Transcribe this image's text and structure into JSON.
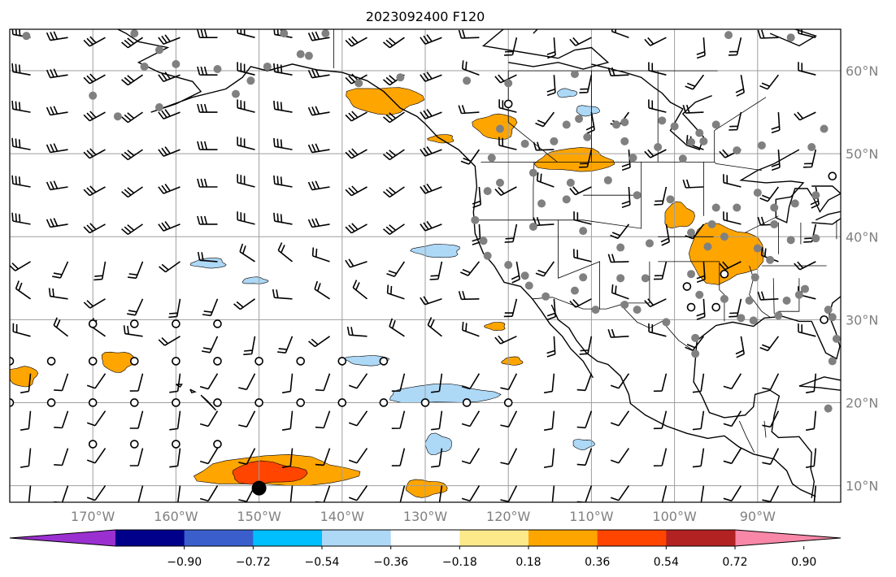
{
  "title": "2023092400 F120",
  "map": {
    "lon_range": [
      -180,
      -80
    ],
    "lat_range": [
      8,
      65
    ],
    "lon_ticks": [
      {
        "value": -170,
        "label": "170°W"
      },
      {
        "value": -160,
        "label": "160°W"
      },
      {
        "value": -150,
        "label": "150°W"
      },
      {
        "value": -140,
        "label": "140°W"
      },
      {
        "value": -130,
        "label": "130°W"
      },
      {
        "value": -120,
        "label": "120°W"
      },
      {
        "value": -110,
        "label": "110°W"
      },
      {
        "value": -100,
        "label": "100°W"
      },
      {
        "value": -90,
        "label": "90°W"
      }
    ],
    "lat_ticks": [
      {
        "value": 10,
        "label": "10°N"
      },
      {
        "value": 20,
        "label": "20°N"
      },
      {
        "value": 30,
        "label": "30°N"
      },
      {
        "value": 40,
        "label": "40°N"
      },
      {
        "value": 50,
        "label": "50°N"
      },
      {
        "value": 60,
        "label": "60°N"
      }
    ],
    "grid": true,
    "gridline_color": "#9e9e9e",
    "coastline_color": "#000000",
    "wind_barbs": true,
    "station_marker_color": "#808080"
  },
  "colorbar": {
    "orientation": "horizontal",
    "extend": "both",
    "colors": [
      "#9b30d0",
      "#00008b",
      "#3a5fcd",
      "#00bfff",
      "#add8f6",
      "#ffffff",
      "#fbe98a",
      "#ffa500",
      "#ff4500",
      "#b22222",
      "#f887a8"
    ],
    "tick_labels": [
      "−0.90",
      "−0.72",
      "−0.54",
      "−0.36",
      "−0.18",
      "0.18",
      "0.36",
      "0.54",
      "0.72",
      "0.90"
    ]
  },
  "chart_data": {
    "type": "heatmap",
    "title": "2023092400 F120",
    "xlabel": "",
    "ylabel": "",
    "xlim": [
      -180,
      -80
    ],
    "ylim": [
      8,
      65
    ],
    "levels": [
      -0.9,
      -0.72,
      -0.54,
      -0.36,
      -0.18,
      0.18,
      0.36,
      0.54,
      0.72,
      0.9
    ],
    "positive_regions": [
      {
        "lon": -148,
        "lat": 11.7,
        "rlon": 9.5,
        "rlat": 1.8,
        "level": 0.36
      },
      {
        "lon": -149,
        "lat": 11.5,
        "rlon": 4.5,
        "rlat": 1.3,
        "level": 0.54
      },
      {
        "lon": -130,
        "lat": 9.7,
        "rlon": 2.5,
        "rlat": 1.0,
        "level": 0.36
      },
      {
        "lon": -135,
        "lat": 56.5,
        "rlon": 4.5,
        "rlat": 1.6,
        "level": 0.36
      },
      {
        "lon": -121.5,
        "lat": 53.3,
        "rlon": 2.5,
        "rlat": 1.5,
        "level": 0.36
      },
      {
        "lon": -128,
        "lat": 51.8,
        "rlon": 1.5,
        "rlat": 0.5,
        "level": 0.36
      },
      {
        "lon": -112,
        "lat": 49.2,
        "rlon": 4.5,
        "rlat": 1.4,
        "level": 0.36
      },
      {
        "lon": -99.5,
        "lat": 42.5,
        "rlon": 1.8,
        "rlat": 1.5,
        "level": 0.36
      },
      {
        "lon": -94,
        "lat": 38,
        "rlon": 4.5,
        "rlat": 3.4,
        "level": 0.36
      },
      {
        "lon": -167,
        "lat": 25,
        "rlon": 2.0,
        "rlat": 1.2,
        "level": 0.36
      },
      {
        "lon": -178.5,
        "lat": 23.2,
        "rlon": 1.8,
        "rlat": 1.2,
        "level": 0.36
      },
      {
        "lon": -121.5,
        "lat": 29.2,
        "rlon": 1.2,
        "rlat": 0.5,
        "level": 0.36
      },
      {
        "lon": -119.5,
        "lat": 25.0,
        "rlon": 1.2,
        "rlat": 0.5,
        "level": 0.36
      }
    ],
    "negative_regions": [
      {
        "lon": -128,
        "lat": 21.0,
        "rlon": 6.5,
        "rlat": 1.1,
        "level": -0.36
      },
      {
        "lon": -128.5,
        "lat": 15.0,
        "rlon": 1.6,
        "rlat": 1.2,
        "level": -0.36
      },
      {
        "lon": -111,
        "lat": 15.0,
        "rlon": 1.3,
        "rlat": 0.6,
        "level": -0.36
      },
      {
        "lon": -137,
        "lat": 25.1,
        "rlon": 2.5,
        "rlat": 0.6,
        "level": -0.36
      },
      {
        "lon": -128.5,
        "lat": 38.3,
        "rlon": 2.8,
        "rlat": 0.8,
        "level": -0.36
      },
      {
        "lon": -156,
        "lat": 36.8,
        "rlon": 2.0,
        "rlat": 0.6,
        "level": -0.36
      },
      {
        "lon": -150.5,
        "lat": 34.7,
        "rlon": 1.5,
        "rlat": 0.4,
        "level": -0.36
      },
      {
        "lon": -113,
        "lat": 57.3,
        "rlon": 1.2,
        "rlat": 0.5,
        "level": -0.36
      },
      {
        "lon": -110.5,
        "lat": 55.2,
        "rlon": 1.4,
        "rlat": 0.6,
        "level": -0.36
      }
    ],
    "stations_gray": [
      [
        -165,
        64.5
      ],
      [
        -160,
        60.8
      ],
      [
        -145,
        62
      ],
      [
        -147,
        64.5
      ],
      [
        -138,
        58.5
      ],
      [
        -125,
        58.8
      ],
      [
        -133,
        59.2
      ],
      [
        -120,
        58.5
      ],
      [
        -112,
        59.6
      ],
      [
        -93.5,
        64.3
      ],
      [
        -86,
        64
      ],
      [
        -162,
        55.6
      ],
      [
        -170,
        57
      ],
      [
        -151,
        58.8
      ],
      [
        -149,
        60.5
      ],
      [
        -111.5,
        54.2
      ],
      [
        -113,
        53.5
      ],
      [
        -110.5,
        52
      ],
      [
        -107,
        53.5
      ],
      [
        -106,
        53.8
      ],
      [
        -101.5,
        54
      ],
      [
        -100,
        53.3
      ],
      [
        -98,
        51.4
      ],
      [
        -97,
        52.5
      ],
      [
        -106,
        51.5
      ],
      [
        -102,
        50.8
      ],
      [
        -114.5,
        51.5
      ],
      [
        -118,
        51.2
      ],
      [
        -121,
        53
      ],
      [
        -122,
        49.5
      ],
      [
        -121,
        46.5
      ],
      [
        -117,
        47.7
      ],
      [
        -112.5,
        46.5
      ],
      [
        -116,
        44
      ],
      [
        -113,
        44.5
      ],
      [
        -122.5,
        45.5
      ],
      [
        -124,
        42
      ],
      [
        -117,
        41.2
      ],
      [
        -111,
        40.7
      ],
      [
        -106.5,
        38.7
      ],
      [
        -103,
        39.2
      ],
      [
        -98,
        40.5
      ],
      [
        -100.5,
        44.5
      ],
      [
        -104.5,
        45
      ],
      [
        -108,
        46.8
      ],
      [
        -105,
        49.5
      ],
      [
        -99,
        49.4
      ],
      [
        -96.5,
        51.5
      ],
      [
        -95,
        53.5
      ],
      [
        -92.5,
        50.4
      ],
      [
        -89.5,
        51
      ],
      [
        -83.5,
        50.8
      ],
      [
        -82,
        53
      ],
      [
        -94,
        40
      ],
      [
        -95.5,
        41.5
      ],
      [
        -92.5,
        43.5
      ],
      [
        -88,
        43.5
      ],
      [
        -85.5,
        44
      ],
      [
        -83,
        45
      ],
      [
        -90,
        45.3
      ],
      [
        -88,
        41.5
      ],
      [
        -86,
        39.6
      ],
      [
        -83,
        39.8
      ],
      [
        -90,
        38.6
      ],
      [
        -96,
        38.8
      ],
      [
        -98,
        35.5
      ],
      [
        -103.5,
        35
      ],
      [
        -106.5,
        35
      ],
      [
        -112,
        33.5
      ],
      [
        -115.5,
        32.8
      ],
      [
        -117.5,
        34.1
      ],
      [
        -120,
        36.6
      ],
      [
        -122.5,
        37.7
      ],
      [
        -123,
        39.5
      ],
      [
        -118,
        35.3
      ],
      [
        -111,
        35.1
      ],
      [
        -106,
        31.8
      ],
      [
        -109.5,
        31.2
      ],
      [
        -104.5,
        31.2
      ],
      [
        -101,
        29.7
      ],
      [
        -97.5,
        27.8
      ],
      [
        -97.5,
        25.9
      ],
      [
        -97,
        33
      ],
      [
        -94,
        32.5
      ],
      [
        -91,
        32.3
      ],
      [
        -92,
        30.2
      ],
      [
        -90.5,
        29.9
      ],
      [
        -87.5,
        30.5
      ],
      [
        -86.5,
        32.3
      ],
      [
        -84.3,
        33.7
      ],
      [
        -81.5,
        31.2
      ],
      [
        -80.5,
        27.7
      ],
      [
        -81,
        25
      ],
      [
        -81,
        30.3
      ],
      [
        -81.5,
        19.3
      ],
      [
        -85,
        33
      ],
      [
        -90.3,
        35.1
      ],
      [
        -88.5,
        37.2
      ],
      [
        -95,
        43.5
      ],
      [
        -163.8,
        60.5
      ],
      [
        -178,
        64.2
      ],
      [
        -167,
        54.5
      ],
      [
        -152.8,
        57.2
      ],
      [
        -155,
        60.2
      ],
      [
        -162,
        62.5
      ],
      [
        -144,
        61.8
      ],
      [
        -142,
        64.5
      ]
    ],
    "stations_open": [
      [
        -170,
        29.5
      ],
      [
        -165,
        29.5
      ],
      [
        -160,
        29.5
      ],
      [
        -155,
        29.5
      ],
      [
        -180,
        25
      ],
      [
        -175,
        25
      ],
      [
        -170,
        25
      ],
      [
        -165,
        25
      ],
      [
        -160,
        25
      ],
      [
        -155,
        25
      ],
      [
        -150,
        25
      ],
      [
        -145,
        25
      ],
      [
        -140,
        25
      ],
      [
        -135,
        25
      ],
      [
        -180,
        20
      ],
      [
        -175,
        20
      ],
      [
        -170,
        20
      ],
      [
        -165,
        20
      ],
      [
        -160,
        20
      ],
      [
        -155,
        20
      ],
      [
        -150,
        20
      ],
      [
        -145,
        20
      ],
      [
        -140,
        20
      ],
      [
        -135,
        20
      ],
      [
        -130,
        20
      ],
      [
        -125,
        20
      ],
      [
        -120,
        20
      ],
      [
        -170,
        15
      ],
      [
        -165,
        15
      ],
      [
        -160,
        15
      ],
      [
        -155,
        15
      ],
      [
        -120,
        56
      ],
      [
        -98.5,
        34
      ],
      [
        -81,
        47.3
      ],
      [
        -82,
        30
      ],
      [
        -94,
        35.5
      ],
      [
        -95,
        31.5
      ],
      [
        -98,
        31.5
      ]
    ],
    "station_filled": [
      -150,
      9.7
    ],
    "wind_barb_grid": {
      "lon_start": -177.5,
      "lon_step": 4.5,
      "lat_start": 10,
      "lat_step": 4.5
    }
  }
}
